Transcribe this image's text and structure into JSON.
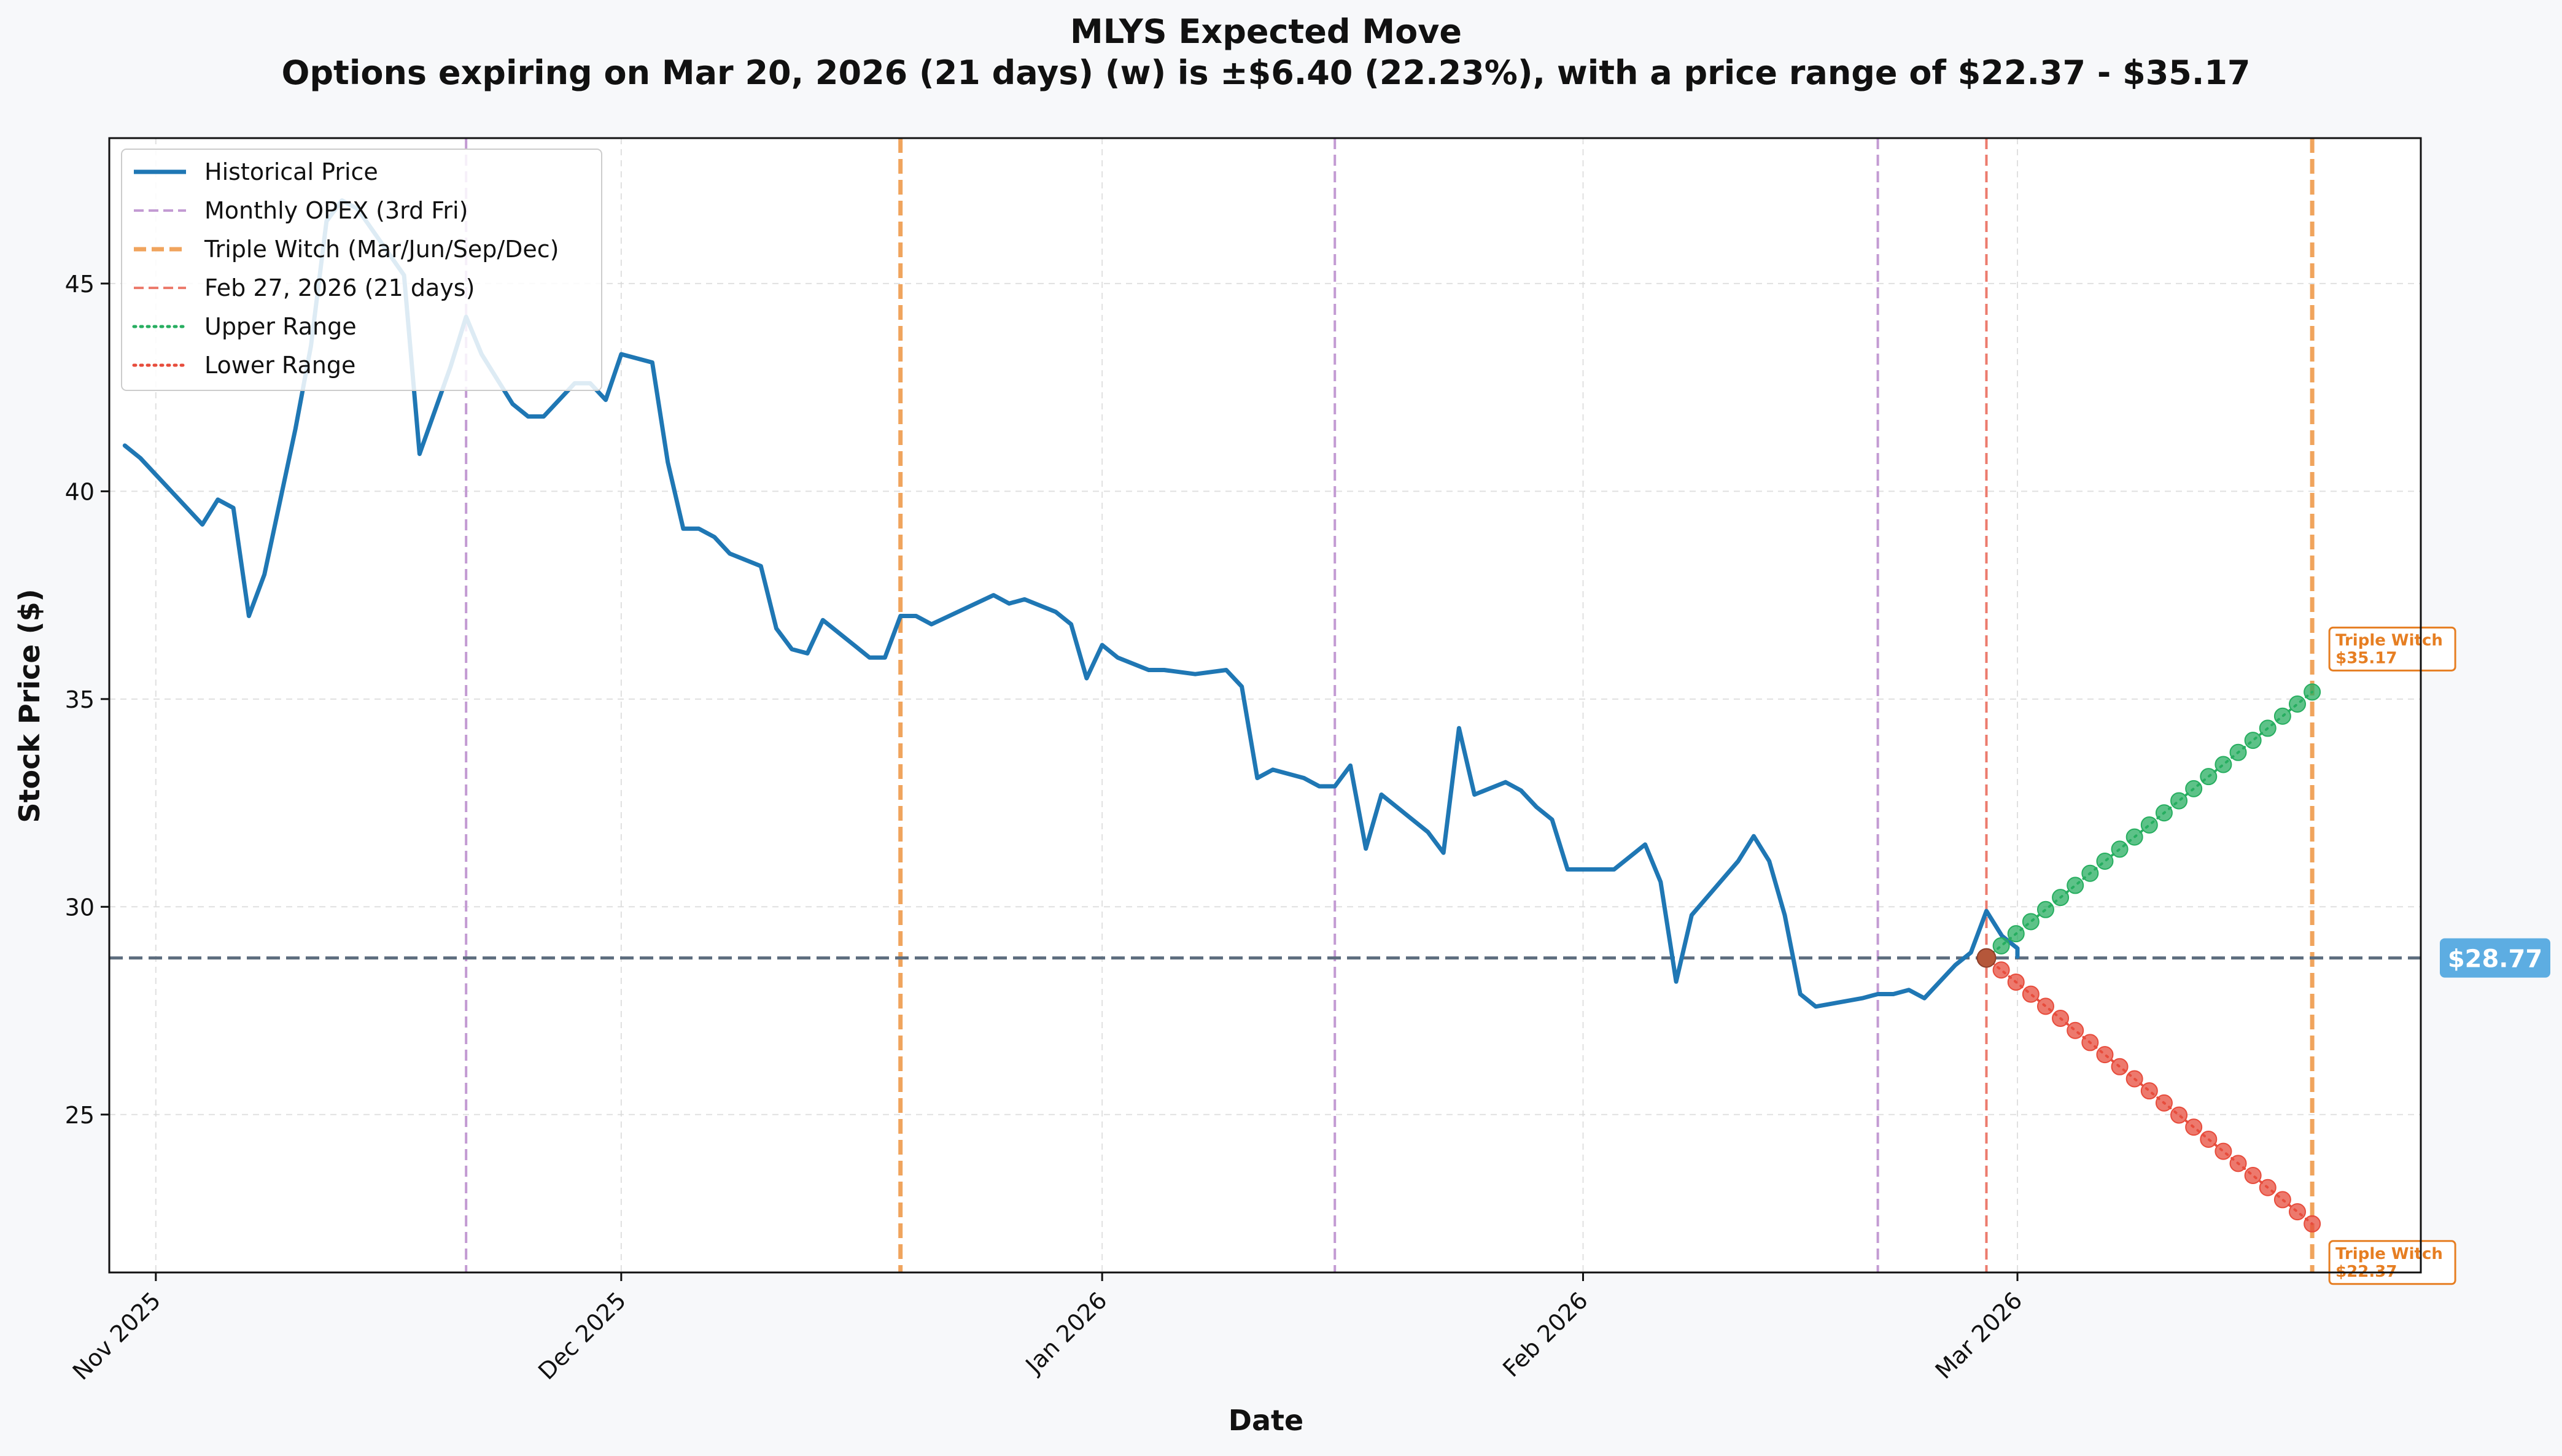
{
  "chart_data": {
    "type": "line",
    "title": "MLYS Expected Move",
    "subtitle": "Options expiring on Mar 20, 2026 (21 days) (w) is ±$6.40 (22.23%), with a price range of $22.37 - $35.17",
    "xlabel": "Date",
    "ylabel": "Stock Price ($)",
    "ylim": [
      21.2,
      48.5
    ],
    "x_range": [
      "2025-10-29",
      "2026-03-27"
    ],
    "x_ticks": [
      {
        "date": "2025-11-01",
        "label": "Nov 2025"
      },
      {
        "date": "2025-12-01",
        "label": "Dec 2025"
      },
      {
        "date": "2026-01-01",
        "label": "Jan 2026"
      },
      {
        "date": "2026-02-01",
        "label": "Feb 2026"
      },
      {
        "date": "2026-03-01",
        "label": "Mar 2026"
      }
    ],
    "y_ticks": [
      25,
      30,
      35,
      40,
      45
    ],
    "grid": true,
    "legend_position": "top-left",
    "legend": [
      {
        "label": "Historical Price",
        "color": "#1f77b4",
        "style": "solid"
      },
      {
        "label": "Monthly OPEX (3rd Fri)",
        "color": "#c39bd3",
        "style": "dashed"
      },
      {
        "label": "Triple Witch (Mar/Jun/Sep/Dec)",
        "color": "#f0a45d",
        "style": "dashed-thick"
      },
      {
        "label": "Feb 27, 2026 (21 days)",
        "color": "#ec7b6d",
        "style": "dashed"
      },
      {
        "label": "Upper Range",
        "color": "#27ae60",
        "style": "dotted"
      },
      {
        "label": "Lower Range",
        "color": "#e74c3c",
        "style": "dotted"
      }
    ],
    "series": [
      {
        "name": "Historical Price",
        "color": "#1f77b4",
        "points": [
          [
            "2025-10-30",
            41.1
          ],
          [
            "2025-10-31",
            40.8
          ],
          [
            "2025-11-04",
            39.2
          ],
          [
            "2025-11-05",
            39.8
          ],
          [
            "2025-11-06",
            39.6
          ],
          [
            "2025-11-07",
            37.0
          ],
          [
            "2025-11-08",
            38.0
          ],
          [
            "2025-11-10",
            41.5
          ],
          [
            "2025-11-11",
            43.5
          ],
          [
            "2025-11-12",
            46.5
          ],
          [
            "2025-11-13",
            47.0
          ],
          [
            "2025-11-14",
            46.8
          ],
          [
            "2025-11-17",
            45.2
          ],
          [
            "2025-11-18",
            40.9
          ],
          [
            "2025-11-20",
            43.0
          ],
          [
            "2025-11-21",
            44.2
          ],
          [
            "2025-11-22",
            43.3
          ],
          [
            "2025-11-24",
            42.1
          ],
          [
            "2025-11-25",
            41.8
          ],
          [
            "2025-11-26",
            41.8
          ],
          [
            "2025-11-28",
            42.6
          ],
          [
            "2025-11-29",
            42.6
          ],
          [
            "2025-11-30",
            42.2
          ],
          [
            "2025-12-01",
            43.3
          ],
          [
            "2025-12-03",
            43.1
          ],
          [
            "2025-12-04",
            40.7
          ],
          [
            "2025-12-05",
            39.1
          ],
          [
            "2025-12-06",
            39.1
          ],
          [
            "2025-12-07",
            38.9
          ],
          [
            "2025-12-08",
            38.5
          ],
          [
            "2025-12-10",
            38.2
          ],
          [
            "2025-12-11",
            36.7
          ],
          [
            "2025-12-12",
            36.2
          ],
          [
            "2025-12-13",
            36.1
          ],
          [
            "2025-12-14",
            36.9
          ],
          [
            "2025-12-15",
            36.6
          ],
          [
            "2025-12-16",
            36.3
          ],
          [
            "2025-12-17",
            36.0
          ],
          [
            "2025-12-18",
            36.0
          ],
          [
            "2025-12-19",
            37.0
          ],
          [
            "2025-12-20",
            37.0
          ],
          [
            "2025-12-21",
            36.8
          ],
          [
            "2025-12-25",
            37.5
          ],
          [
            "2025-12-26",
            37.3
          ],
          [
            "2025-12-27",
            37.4
          ],
          [
            "2025-12-29",
            37.1
          ],
          [
            "2025-12-30",
            36.8
          ],
          [
            "2025-12-31",
            35.5
          ],
          [
            "2026-01-01",
            36.3
          ],
          [
            "2026-01-02",
            36.0
          ],
          [
            "2026-01-04",
            35.7
          ],
          [
            "2026-01-05",
            35.7
          ],
          [
            "2026-01-07",
            35.6
          ],
          [
            "2026-01-09",
            35.7
          ],
          [
            "2026-01-10",
            35.3
          ],
          [
            "2026-01-11",
            33.1
          ],
          [
            "2026-01-12",
            33.3
          ],
          [
            "2026-01-14",
            33.1
          ],
          [
            "2026-01-15",
            32.9
          ],
          [
            "2026-01-16",
            32.9
          ],
          [
            "2026-01-17",
            33.4
          ],
          [
            "2026-01-18",
            31.4
          ],
          [
            "2026-01-19",
            32.7
          ],
          [
            "2026-01-22",
            31.8
          ],
          [
            "2026-01-23",
            31.3
          ],
          [
            "2026-01-24",
            34.3
          ],
          [
            "2026-01-25",
            32.7
          ],
          [
            "2026-01-27",
            33.0
          ],
          [
            "2026-01-28",
            32.8
          ],
          [
            "2026-01-29",
            32.4
          ],
          [
            "2026-01-30",
            32.1
          ],
          [
            "2026-01-31",
            30.9
          ],
          [
            "2026-02-02",
            30.9
          ],
          [
            "2026-02-03",
            30.9
          ],
          [
            "2026-02-05",
            31.5
          ],
          [
            "2026-02-06",
            30.6
          ],
          [
            "2026-02-07",
            28.2
          ],
          [
            "2026-02-08",
            29.8
          ],
          [
            "2026-02-11",
            31.1
          ],
          [
            "2026-02-12",
            31.7
          ],
          [
            "2026-02-13",
            31.1
          ],
          [
            "2026-02-14",
            29.8
          ],
          [
            "2026-02-15",
            27.9
          ],
          [
            "2026-02-16",
            27.6
          ],
          [
            "2026-02-19",
            27.8
          ],
          [
            "2026-02-20",
            27.9
          ],
          [
            "2026-02-21",
            27.9
          ],
          [
            "2026-02-22",
            28.0
          ],
          [
            "2026-02-23",
            27.8
          ],
          [
            "2026-02-25",
            28.6
          ],
          [
            "2026-02-26",
            28.9
          ],
          [
            "2026-02-27",
            29.9
          ],
          [
            "2026-02-28",
            29.3
          ],
          [
            "2026-03-01",
            29.0
          ],
          [
            "2026-03-01",
            28.8
          ]
        ]
      },
      {
        "name": "Upper Range",
        "color": "#27ae60",
        "start_date": "2026-02-27",
        "end_date": "2026-03-20",
        "start_value": 28.77,
        "end_value": 35.17,
        "marker_count": 22
      },
      {
        "name": "Lower Range",
        "color": "#e74c3c",
        "start_date": "2026-02-27",
        "end_date": "2026-03-20",
        "start_value": 28.77,
        "end_value": 22.37,
        "marker_count": 22
      }
    ],
    "vertical_lines": {
      "monthly_opex": [
        "2025-11-21",
        "2026-01-16",
        "2026-02-20"
      ],
      "triple_witch": [
        "2025-12-19",
        "2026-03-20"
      ],
      "reference": "2026-02-27"
    },
    "current_price": {
      "value": 28.77,
      "label": "$28.77"
    },
    "annotations": [
      {
        "label": "Triple Witch",
        "value_label": "$35.17",
        "date": "2026-03-20",
        "value": 35.17
      },
      {
        "label": "Triple Witch",
        "value_label": "$22.37",
        "date": "2026-03-20",
        "value": 22.37
      }
    ],
    "colors": {
      "historical": "#1f77b4",
      "opex": "#c39bd3",
      "triple_witch": "#f0a45d",
      "reference": "#ec7b6d",
      "upper": "#27ae60",
      "lower": "#e74c3c",
      "current_line": "#5d6d7e",
      "price_badge": "#5dade2",
      "annotation_text": "#e67e22"
    }
  }
}
